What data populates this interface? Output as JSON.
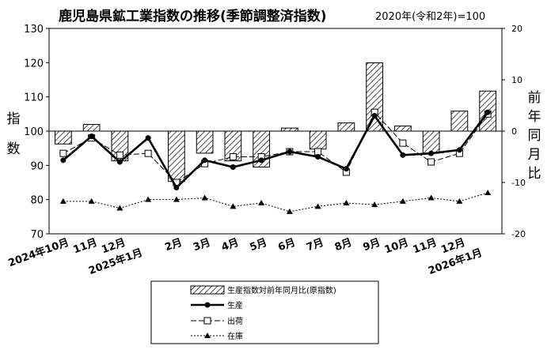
{
  "header": {
    "title": "鹿児島県鉱工業指数の推移(季節調整済指数)",
    "base_note": "2020年(令和2年)=100"
  },
  "chart_data": {
    "type": "bar+line",
    "categories": [
      "2024年10月",
      "11月",
      "12月\n2025年1月",
      "",
      "2月",
      "3月",
      "4月",
      "5月",
      "6月",
      "7月",
      "8月",
      "9月",
      "10月",
      "11月",
      "12月\n2026年1月",
      ""
    ],
    "category_labels": [
      {
        "text": "2024年10月"
      },
      {
        "text": "11月"
      },
      {
        "text": "12月"
      },
      {
        "text": "2025年1月"
      },
      {
        "text": "2月"
      },
      {
        "text": "3月"
      },
      {
        "text": "4月"
      },
      {
        "text": "5月"
      },
      {
        "text": "6月"
      },
      {
        "text": "7月"
      },
      {
        "text": "8月"
      },
      {
        "text": "9月"
      },
      {
        "text": "10月"
      },
      {
        "text": "11月"
      },
      {
        "text": "12月"
      },
      {
        "text": "2026年1月"
      }
    ],
    "y_left": {
      "label": "指数",
      "min": 70,
      "max": 130,
      "ticks": [
        70,
        80,
        90,
        100,
        110,
        120,
        130
      ]
    },
    "y_right": {
      "label": "前年同月比",
      "min": -20,
      "max": 20,
      "ticks": [
        -20,
        -10,
        0,
        10,
        20
      ]
    },
    "series": [
      {
        "name": "生産指数対前年同月比(原指数)",
        "type": "bar",
        "axis": "right",
        "values": [
          -2.5,
          1.3,
          -5.8,
          0,
          -9.8,
          -4.3,
          -5.8,
          -7.0,
          0.6,
          -3.5,
          1.6,
          13.3,
          1.0,
          -4.3,
          3.9,
          7.8
        ]
      },
      {
        "name": "生産",
        "type": "line",
        "axis": "left",
        "values": [
          91.5,
          98.5,
          91.0,
          98.0,
          83.5,
          91.5,
          89.5,
          91.5,
          94.0,
          92.5,
          89.0,
          104.5,
          93.0,
          93.5,
          94.5,
          105.5
        ]
      },
      {
        "name": "出荷",
        "type": "line",
        "axis": "left",
        "values": [
          93.5,
          98.0,
          93.0,
          93.5,
          85.0,
          90.5,
          92.5,
          92.5,
          94.0,
          94.0,
          88.0,
          105.5,
          96.5,
          91.0,
          93.5,
          105.0
        ]
      },
      {
        "name": "在庫",
        "type": "line",
        "axis": "left",
        "values": [
          79.5,
          79.5,
          77.5,
          80.0,
          80.0,
          80.5,
          78.0,
          79.0,
          76.5,
          78.0,
          79.0,
          78.5,
          79.5,
          80.5,
          79.5,
          82.0
        ]
      }
    ],
    "legend_position": "bottom-center"
  },
  "colors": {
    "line": "#000000",
    "background": "#ffffff"
  }
}
